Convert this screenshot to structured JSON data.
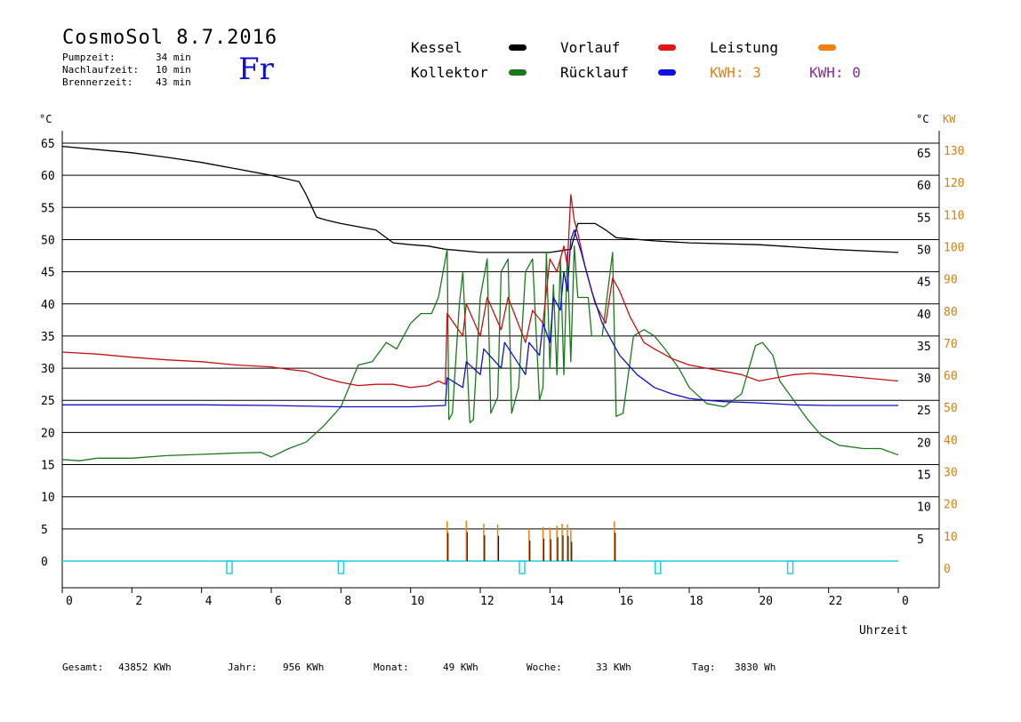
{
  "header": {
    "title": "CosmoSol 8.7.2016",
    "day": "Fr",
    "stats": [
      {
        "label": "Pumpzeit:",
        "value": "34 min"
      },
      {
        "label": "Nachlaufzeit:",
        "value": "10 min"
      },
      {
        "label": "Brennerzeit:",
        "value": "43 min"
      }
    ]
  },
  "legend": {
    "kessel": "Kessel",
    "kollektor": "Kollektor",
    "vorlauf": "Vorlauf",
    "ruecklauf": "Rücklauf",
    "leistung": "Leistung",
    "kwh1": "KWH: 3",
    "kwh2": "KWH: 0"
  },
  "colors": {
    "kessel": "#000000",
    "kollektor": "#1a7a1a",
    "vorlauf": "#c81010",
    "ruecklauf": "#1010c8",
    "leistung": "#ee8010",
    "kwh2": "#8a2aa0",
    "pump": "#20d0e0"
  },
  "footer": {
    "gesamt_label": "Gesamt:",
    "gesamt_value": "43852 KWh",
    "jahr_label": "Jahr:",
    "jahr_value": "956 KWh",
    "monat_label": "Monat:",
    "monat_value": "49 KWh",
    "woche_label": "Woche:",
    "woche_value": "33 KWh",
    "tag_label": "Tag:",
    "tag_value": "3830 Wh"
  },
  "chart_data": {
    "type": "line",
    "xlabel": "Uhrzeit",
    "ylabel_left": "°C",
    "ylabel_right_temp": "°C",
    "ylabel_right_power": "KW",
    "xlim": [
      0,
      24
    ],
    "ylim": [
      0,
      65
    ],
    "x_ticks": [
      "0",
      "2",
      "4",
      "6",
      "8",
      "10",
      "12",
      "14",
      "16",
      "18",
      "20",
      "22",
      "0"
    ],
    "y_ticks": [
      0,
      5,
      10,
      15,
      20,
      25,
      30,
      35,
      40,
      45,
      50,
      55,
      60,
      65
    ],
    "y_ticks_power": [
      0,
      10,
      20,
      30,
      40,
      50,
      60,
      70,
      80,
      90,
      100,
      110,
      120,
      130
    ],
    "grid": true,
    "series": [
      {
        "name": "Kessel",
        "color": "kessel",
        "points": [
          [
            0,
            64.5
          ],
          [
            1,
            64
          ],
          [
            2,
            63.5
          ],
          [
            3,
            62.8
          ],
          [
            4,
            62
          ],
          [
            5,
            61
          ],
          [
            6,
            60
          ],
          [
            6.8,
            59
          ],
          [
            7,
            57
          ],
          [
            7.3,
            53.5
          ],
          [
            7.6,
            53
          ],
          [
            8,
            52.5
          ],
          [
            9,
            51.5
          ],
          [
            9.5,
            49.5
          ],
          [
            10,
            49.2
          ],
          [
            10.5,
            49
          ],
          [
            11,
            48.5
          ],
          [
            12,
            48
          ],
          [
            13,
            48
          ],
          [
            14,
            48
          ],
          [
            14.6,
            48.5
          ],
          [
            14.8,
            52.5
          ],
          [
            15.3,
            52.5
          ],
          [
            15.6,
            51.5
          ],
          [
            15.9,
            50.3
          ],
          [
            17,
            49.8
          ],
          [
            18,
            49.5
          ],
          [
            20,
            49.2
          ],
          [
            22,
            48.5
          ],
          [
            24,
            48
          ]
        ]
      },
      {
        "name": "Kollektor",
        "color": "kollektor",
        "points": [
          [
            0,
            15.8
          ],
          [
            0.5,
            15.6
          ],
          [
            1,
            16
          ],
          [
            2,
            16
          ],
          [
            3,
            16.4
          ],
          [
            4,
            16.6
          ],
          [
            5,
            16.8
          ],
          [
            5.7,
            16.9
          ],
          [
            6,
            16.2
          ],
          [
            6.5,
            17.5
          ],
          [
            7,
            18.5
          ],
          [
            7.5,
            21
          ],
          [
            8,
            24
          ],
          [
            8.5,
            30.5
          ],
          [
            8.9,
            31
          ],
          [
            9.3,
            34
          ],
          [
            9.6,
            33
          ],
          [
            10,
            37
          ],
          [
            10.3,
            38.5
          ],
          [
            10.6,
            38.5
          ],
          [
            10.8,
            41
          ],
          [
            11.05,
            48.5
          ],
          [
            11.1,
            22
          ],
          [
            11.2,
            23
          ],
          [
            11.4,
            40
          ],
          [
            11.5,
            45
          ],
          [
            11.7,
            21.5
          ],
          [
            11.8,
            22
          ],
          [
            12,
            41
          ],
          [
            12.2,
            47
          ],
          [
            12.3,
            23
          ],
          [
            12.5,
            25.5
          ],
          [
            12.6,
            45
          ],
          [
            12.8,
            47
          ],
          [
            12.9,
            23
          ],
          [
            13.1,
            27
          ],
          [
            13.3,
            45
          ],
          [
            13.5,
            47
          ],
          [
            13.7,
            25
          ],
          [
            13.8,
            27
          ],
          [
            13.9,
            48
          ],
          [
            14,
            30
          ],
          [
            14.1,
            43
          ],
          [
            14.2,
            29
          ],
          [
            14.3,
            47
          ],
          [
            14.4,
            29
          ],
          [
            14.5,
            48
          ],
          [
            14.6,
            31
          ],
          [
            14.7,
            49
          ],
          [
            14.8,
            41
          ],
          [
            15.1,
            41
          ],
          [
            15.2,
            35
          ],
          [
            15.5,
            35
          ],
          [
            15.8,
            48
          ],
          [
            15.9,
            22.5
          ],
          [
            16.1,
            23
          ],
          [
            16.4,
            35
          ],
          [
            16.7,
            36
          ],
          [
            17,
            35
          ],
          [
            17.3,
            33
          ],
          [
            17.7,
            30
          ],
          [
            18,
            27
          ],
          [
            18.5,
            24.5
          ],
          [
            19,
            24
          ],
          [
            19.5,
            26
          ],
          [
            19.9,
            33.5
          ],
          [
            20.1,
            34
          ],
          [
            20.4,
            32
          ],
          [
            20.6,
            28
          ],
          [
            21,
            25
          ],
          [
            21.4,
            22
          ],
          [
            21.8,
            19.5
          ],
          [
            22.3,
            18
          ],
          [
            23,
            17.5
          ],
          [
            23.5,
            17.5
          ],
          [
            24,
            16.5
          ]
        ]
      },
      {
        "name": "Vorlauf",
        "color": "vorlauf",
        "points": [
          [
            0,
            32.5
          ],
          [
            1,
            32.2
          ],
          [
            2,
            31.7
          ],
          [
            3,
            31.3
          ],
          [
            4,
            31
          ],
          [
            5,
            30.5
          ],
          [
            6,
            30.2
          ],
          [
            6.5,
            29.8
          ],
          [
            7,
            29.5
          ],
          [
            7.5,
            28.5
          ],
          [
            8,
            27.8
          ],
          [
            8.5,
            27.3
          ],
          [
            9,
            27.5
          ],
          [
            9.5,
            27.5
          ],
          [
            10,
            27
          ],
          [
            10.5,
            27.3
          ],
          [
            10.8,
            28
          ],
          [
            11,
            27.5
          ],
          [
            11.05,
            38.5
          ],
          [
            11.5,
            35
          ],
          [
            11.6,
            40
          ],
          [
            12,
            35
          ],
          [
            12.2,
            41
          ],
          [
            12.6,
            36
          ],
          [
            12.8,
            41
          ],
          [
            13.3,
            34
          ],
          [
            13.5,
            39
          ],
          [
            13.8,
            37
          ],
          [
            14,
            47
          ],
          [
            14.2,
            45
          ],
          [
            14.4,
            49
          ],
          [
            14.5,
            46
          ],
          [
            14.6,
            57
          ],
          [
            14.7,
            53
          ],
          [
            14.8,
            51
          ],
          [
            15,
            46
          ],
          [
            15.3,
            40
          ],
          [
            15.6,
            37
          ],
          [
            15.8,
            44
          ],
          [
            16,
            42
          ],
          [
            16.3,
            38
          ],
          [
            16.7,
            34
          ],
          [
            17,
            33
          ],
          [
            17.5,
            31.5
          ],
          [
            18,
            30.5
          ],
          [
            18.5,
            30
          ],
          [
            19,
            29.5
          ],
          [
            19.5,
            29
          ],
          [
            20,
            28
          ],
          [
            20.5,
            28.5
          ],
          [
            21,
            29
          ],
          [
            21.5,
            29.2
          ],
          [
            22,
            29
          ],
          [
            23,
            28.5
          ],
          [
            24,
            28
          ]
        ]
      },
      {
        "name": "Rücklauf",
        "color": "ruecklauf",
        "points": [
          [
            0,
            24.3
          ],
          [
            2,
            24.3
          ],
          [
            4,
            24.3
          ],
          [
            6,
            24.2
          ],
          [
            8,
            24
          ],
          [
            10,
            24
          ],
          [
            11,
            24.2
          ],
          [
            11.05,
            28.5
          ],
          [
            11.5,
            27
          ],
          [
            11.6,
            31
          ],
          [
            12,
            29
          ],
          [
            12.1,
            33
          ],
          [
            12.6,
            30
          ],
          [
            12.7,
            34
          ],
          [
            13.3,
            29
          ],
          [
            13.4,
            34
          ],
          [
            13.7,
            32
          ],
          [
            13.8,
            37
          ],
          [
            14,
            34
          ],
          [
            14.1,
            41
          ],
          [
            14.3,
            39
          ],
          [
            14.4,
            45
          ],
          [
            14.5,
            42
          ],
          [
            14.6,
            50
          ],
          [
            14.7,
            51.5
          ],
          [
            14.9,
            48
          ],
          [
            15.2,
            42
          ],
          [
            15.5,
            37
          ],
          [
            15.8,
            34
          ],
          [
            16,
            32
          ],
          [
            16.5,
            29
          ],
          [
            17,
            27
          ],
          [
            17.5,
            26
          ],
          [
            18,
            25.3
          ],
          [
            18.5,
            25
          ],
          [
            19,
            24.8
          ],
          [
            20,
            24.6
          ],
          [
            21,
            24.3
          ],
          [
            22,
            24.2
          ],
          [
            23,
            24.2
          ],
          [
            24,
            24.2
          ]
        ]
      }
    ],
    "leistung_spikes": [
      [
        11.05,
        6.2
      ],
      [
        11.6,
        6.3
      ],
      [
        12.1,
        5.8
      ],
      [
        12.5,
        5.7
      ],
      [
        13.4,
        5
      ],
      [
        13.8,
        5.3
      ],
      [
        14,
        5.2
      ],
      [
        14.2,
        5.5
      ],
      [
        14.35,
        5.8
      ],
      [
        14.5,
        5.7
      ],
      [
        14.6,
        4.8
      ],
      [
        15.85,
        6.2
      ]
    ],
    "pump_markers": [
      4.8,
      8.0,
      13.2,
      17.1,
      20.9
    ]
  }
}
